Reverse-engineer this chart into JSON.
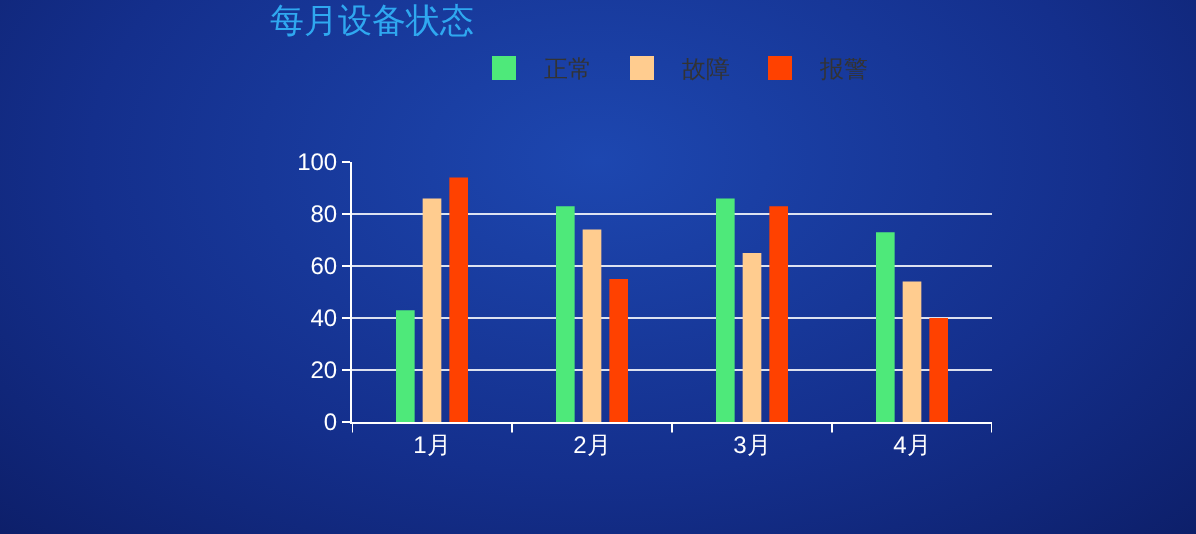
{
  "chart_data": {
    "type": "bar",
    "title": "每月设备状态",
    "categories": [
      "1月",
      "2月",
      "3月",
      "4月"
    ],
    "series": [
      {
        "name": "正常",
        "color": "#4ee97a",
        "values": [
          43,
          83,
          86,
          73
        ]
      },
      {
        "name": "故障",
        "color": "#ffcc8f",
        "values": [
          86,
          74,
          65,
          54
        ]
      },
      {
        "name": "报警",
        "color": "#ff4100",
        "values": [
          94,
          55,
          83,
          40
        ]
      }
    ],
    "ylim": [
      0,
      100
    ],
    "yticks": [
      0,
      20,
      40,
      60,
      80,
      100
    ],
    "grid": "y",
    "legend": "top"
  }
}
